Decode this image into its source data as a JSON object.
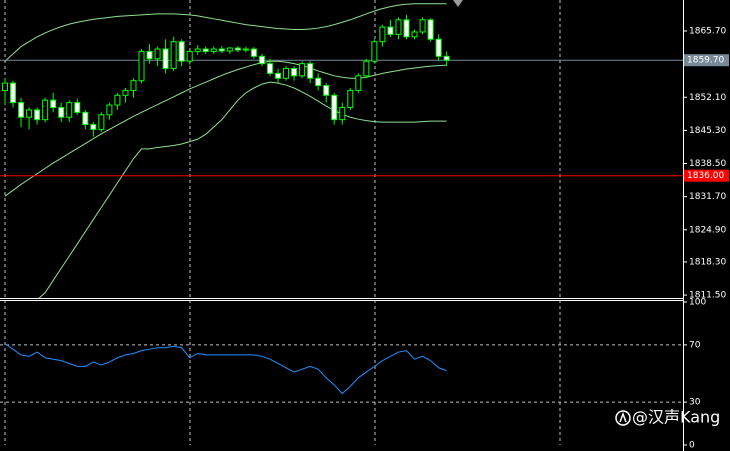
{
  "chart_data": [
    {
      "type": "candlestick",
      "open": [
        1853.5,
        1855,
        1851,
        1848,
        1849.5,
        1847.5,
        1851.5,
        1850,
        1848,
        1851,
        1849,
        1846.5,
        1845.5,
        1848.5,
        1850.5,
        1852.5,
        1853.5,
        1855.5,
        1861.5,
        1860,
        1862,
        1858,
        1863.5,
        1859.5,
        1861.5,
        1862,
        1861.5,
        1862,
        1861.6,
        1862.2,
        1861.8,
        1862,
        1860.5,
        1859,
        1857,
        1856,
        1858,
        1856.5,
        1859,
        1856,
        1854.5,
        1852.5,
        1847.5,
        1850,
        1853.5,
        1856.5,
        1859.5,
        1863.5,
        1866.5,
        1865,
        1868,
        1864.5,
        1865.5,
        1868,
        1864,
        1860.5
      ],
      "high": [
        1856,
        1855.5,
        1852,
        1850,
        1850,
        1852,
        1853,
        1851,
        1851.5,
        1851.8,
        1849.5,
        1847,
        1849,
        1851,
        1853,
        1854,
        1856,
        1862,
        1863,
        1862.5,
        1864,
        1864.5,
        1864,
        1862,
        1862.8,
        1862.5,
        1862.5,
        1862.6,
        1862.4,
        1862.6,
        1862.5,
        1862.4,
        1861,
        1860,
        1858,
        1858.5,
        1858.5,
        1859.5,
        1859.5,
        1857,
        1855,
        1853,
        1851,
        1854,
        1857,
        1860,
        1864,
        1867,
        1868,
        1868.5,
        1869,
        1866,
        1868.5,
        1868.3,
        1865,
        1861.5
      ],
      "low": [
        1850.5,
        1850,
        1846,
        1845.5,
        1846.5,
        1847,
        1849,
        1847,
        1847,
        1848.5,
        1845.5,
        1844,
        1845,
        1847.5,
        1849.5,
        1851,
        1852,
        1855,
        1859,
        1858.5,
        1857,
        1857.5,
        1858.5,
        1858.8,
        1860.8,
        1861,
        1861,
        1861.2,
        1861,
        1861.4,
        1861.3,
        1860,
        1858.5,
        1856.5,
        1855,
        1855.5,
        1855.5,
        1856,
        1855,
        1853.5,
        1851,
        1846.5,
        1846.5,
        1849.5,
        1853,
        1856,
        1859,
        1862.5,
        1864.5,
        1864,
        1864,
        1864,
        1865,
        1863.5,
        1859.5,
        1858.5
      ],
      "close": [
        1855,
        1851,
        1848,
        1849.5,
        1847.5,
        1851.5,
        1850,
        1848,
        1851,
        1849,
        1846.5,
        1845.5,
        1848.5,
        1850.5,
        1852.5,
        1853.5,
        1855.5,
        1861.5,
        1860,
        1862,
        1858,
        1863.5,
        1859.5,
        1861.5,
        1862,
        1861.5,
        1862,
        1861.6,
        1862.2,
        1861.8,
        1862,
        1860.5,
        1859,
        1857,
        1856,
        1858,
        1856.5,
        1859,
        1856,
        1854.5,
        1852.5,
        1847.5,
        1850,
        1853.5,
        1856.5,
        1859.5,
        1863.5,
        1866.5,
        1865,
        1868,
        1864.5,
        1865.5,
        1868,
        1864,
        1860.5,
        1859.7
      ],
      "upper_band": [
        1859.5,
        1861,
        1862.5,
        1863.5,
        1864.5,
        1865.3,
        1866,
        1866.6,
        1867.1,
        1867.5,
        1867.8,
        1868.1,
        1868.3,
        1868.5,
        1868.7,
        1868.8,
        1868.9,
        1869,
        1869.1,
        1869.2,
        1869.2,
        1869.2,
        1869.1,
        1869,
        1868.8,
        1868.5,
        1868.2,
        1867.9,
        1867.6,
        1867.3,
        1867,
        1866.8,
        1866.6,
        1866.4,
        1866.2,
        1866.1,
        1866,
        1866,
        1866.1,
        1866.3,
        1866.6,
        1867,
        1867.5,
        1868,
        1868.6,
        1869.2,
        1869.8,
        1870.3,
        1870.7,
        1871,
        1871.2,
        1871.3,
        1871.3,
        1871.3,
        1871.3,
        1871.3
      ],
      "middle_band": [
        1831.8,
        1833,
        1834.2,
        1835.3,
        1836.4,
        1837.5,
        1838.6,
        1839.6,
        1840.6,
        1841.6,
        1842.6,
        1843.6,
        1844.6,
        1845.5,
        1846.4,
        1847.3,
        1848.2,
        1849,
        1849.8,
        1850.6,
        1851.4,
        1852.2,
        1853,
        1853.8,
        1854.5,
        1855.2,
        1855.9,
        1856.6,
        1857.2,
        1857.8,
        1858.3,
        1858.8,
        1859.2,
        1859.5,
        1859.5,
        1859.3,
        1859,
        1858.6,
        1858.1,
        1857.5,
        1857,
        1856.5,
        1856.2,
        1856,
        1856,
        1856.2,
        1856.6,
        1857,
        1857.3,
        1857.6,
        1857.9,
        1858.1,
        1858.3,
        1858.5,
        1858.6,
        1858.7
      ],
      "lower_band": [
        1803,
        1805,
        1807,
        1809,
        1810.5,
        1812,
        1814.5,
        1817,
        1819.5,
        1822,
        1824.5,
        1827,
        1829.5,
        1832,
        1834.5,
        1837,
        1839.5,
        1841.5,
        1841.5,
        1841.8,
        1842,
        1842.2,
        1842.5,
        1843,
        1843.5,
        1844.5,
        1846,
        1847.5,
        1849.5,
        1851.5,
        1853,
        1854,
        1854.8,
        1855.2,
        1855,
        1854.6,
        1854,
        1853.2,
        1852.3,
        1851.3,
        1850.3,
        1849.4,
        1848.6,
        1848,
        1847.6,
        1847.3,
        1847.1,
        1847,
        1847,
        1847,
        1847,
        1847,
        1847.1,
        1847.2,
        1847.2,
        1847.2
      ],
      "up_color": "#000000",
      "down_color": "#ffffff",
      "wick_color": "#00ff00",
      "band_color": "#8fe08f",
      "ylim": [
        1810.9,
        1871.65
      ],
      "yticks": [
        {
          "value": 1865.7,
          "label": "1865.70"
        },
        {
          "value": 1852.1,
          "label": "1852.10"
        },
        {
          "value": 1845.3,
          "label": "1845.30"
        },
        {
          "value": 1838.5,
          "label": "1838.50"
        },
        {
          "value": 1831.7,
          "label": "1831.70"
        },
        {
          "value": 1824.9,
          "label": "1824.90"
        },
        {
          "value": 1818.3,
          "label": "1818.30"
        },
        {
          "value": 1811.5,
          "label": "1811.50"
        }
      ],
      "price_line": {
        "value": 1859.7,
        "label": "1859.70",
        "color": "#778899"
      },
      "hline": {
        "value": 1836,
        "label": "1836.00",
        "color": "#ff0000"
      },
      "grid": true
    },
    {
      "type": "line",
      "values": [
        71,
        67,
        63,
        62,
        65,
        61,
        60,
        59,
        57,
        55,
        55,
        58,
        56,
        58,
        61,
        63,
        64,
        66,
        67,
        68,
        68,
        69,
        68,
        61,
        64,
        63,
        63,
        63,
        63,
        63,
        63,
        63,
        62,
        60,
        57,
        54,
        51,
        53,
        55,
        53,
        47,
        42,
        36,
        41,
        47,
        51,
        55,
        59,
        62,
        65,
        66,
        60,
        62,
        59,
        54,
        52
      ],
      "color": "#1e90ff",
      "ylim": [
        0,
        100
      ],
      "yticks": [
        100,
        70,
        30,
        0
      ],
      "levels": [
        70,
        30
      ],
      "grid": true
    }
  ],
  "watermark": "@汉声Kang"
}
